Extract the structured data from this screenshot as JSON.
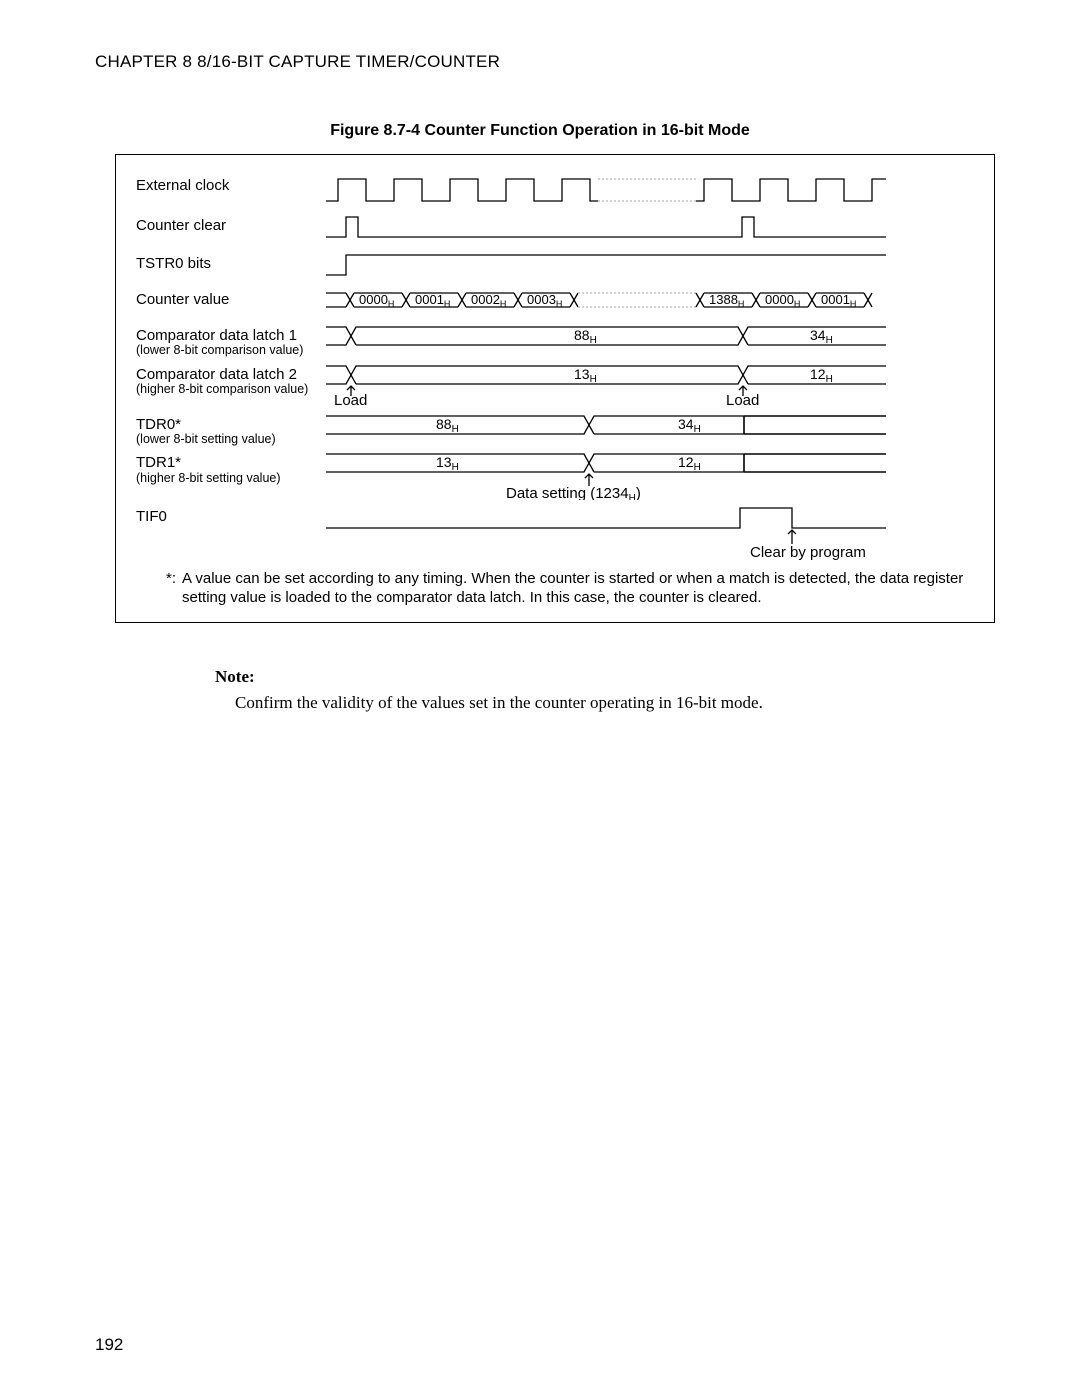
{
  "chapter_heading": "CHAPTER 8  8/16-BIT CAPTURE TIMER/COUNTER",
  "figure_title": "Figure 8.7-4  Counter Function Operation in 16-bit Mode",
  "page_number": "192",
  "note_label": "Note:",
  "note_body": "Confirm the validity of the values set in the counter operating in 16-bit mode.",
  "footnote_mark": "*:",
  "footnote_text": "A value can be set according to any timing.  When the counter is started or when a match is detected, the data register setting value is loaded to the comparator data latch.  In this case, the counter is cleared.",
  "labels": {
    "external_clock": "External clock",
    "counter_clear": "Counter clear",
    "tstr0": "TSTR0 bits",
    "counter_value": "Counter value",
    "comp1_main": "Comparator data latch 1",
    "comp1_sub": "(lower 8-bit comparison value)",
    "comp2_main": "Comparator data latch 2",
    "comp2_sub": "(higher 8-bit comparison value)",
    "tdr0_main": "TDR0*",
    "tdr0_sub": "(lower 8-bit setting value)",
    "tdr1_main": "TDR1*",
    "tdr1_sub": "(higher 8-bit setting value)",
    "tif0": "TIF0",
    "load1": "Load",
    "load2": "Load",
    "data_setting": "Data setting (1234",
    "data_setting_sub": "H",
    "data_setting_close": ")",
    "clear_by_program": "Clear by program"
  },
  "counter_values": {
    "v0": "0000",
    "v1": "0001",
    "v2": "0002",
    "v3": "0003",
    "v4": "1388",
    "v5": "0000",
    "v6": "0001"
  },
  "comp1": {
    "a": "88",
    "b": "34"
  },
  "comp2": {
    "a": "13",
    "b": "12"
  },
  "tdr0": {
    "a": "88",
    "b": "34"
  },
  "tdr1": {
    "a": "13",
    "b": "12"
  },
  "diagram_style": {
    "stroke": "#000000",
    "stroke_width": 1.3,
    "dash_color": "#b5b5b5",
    "font_family": "Arial",
    "text_color": "#000000",
    "hex_sub_size": 10,
    "value_size": 14
  }
}
